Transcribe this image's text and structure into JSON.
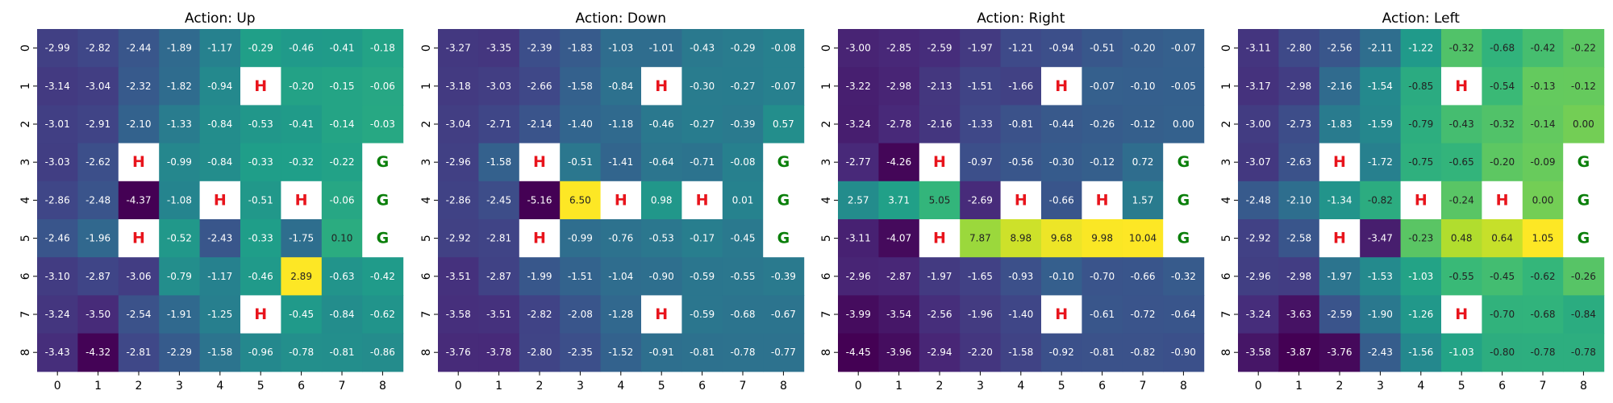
{
  "chart_data": [
    {
      "type": "heatmap",
      "title": "Action: Up",
      "x": [
        "0",
        "1",
        "2",
        "3",
        "4",
        "5",
        "6",
        "7",
        "8"
      ],
      "y": [
        "0",
        "1",
        "2",
        "3",
        "4",
        "5",
        "6",
        "7",
        "8"
      ],
      "values": [
        [
          -2.99,
          -2.82,
          -2.44,
          -1.89,
          -1.17,
          -0.29,
          -0.46,
          -0.41,
          -0.18
        ],
        [
          -3.14,
          -3.04,
          -2.32,
          -1.82,
          -0.94,
          "H",
          -0.2,
          -0.15,
          -0.06
        ],
        [
          -3.01,
          -2.91,
          -2.1,
          -1.33,
          -0.84,
          -0.53,
          -0.41,
          -0.14,
          -0.03
        ],
        [
          -3.03,
          -2.62,
          "H",
          -0.99,
          -0.84,
          -0.33,
          -0.32,
          -0.22,
          "G"
        ],
        [
          -2.86,
          -2.48,
          -4.37,
          -1.08,
          "H",
          -0.51,
          "H",
          -0.06,
          "G"
        ],
        [
          -2.46,
          -1.96,
          "H",
          -0.52,
          -2.43,
          -0.33,
          -1.75,
          0.1,
          "G"
        ],
        [
          -3.1,
          -2.87,
          -3.06,
          -0.79,
          -1.17,
          -0.46,
          2.89,
          -0.63,
          -0.42
        ],
        [
          -3.24,
          -3.5,
          -2.54,
          -1.91,
          -1.25,
          "H",
          -0.45,
          -0.84,
          -0.62
        ],
        [
          -3.43,
          -4.32,
          -2.81,
          -2.29,
          -1.58,
          -0.96,
          -0.78,
          -0.81,
          -0.86
        ]
      ]
    },
    {
      "type": "heatmap",
      "title": "Action: Down",
      "x": [
        "0",
        "1",
        "2",
        "3",
        "4",
        "5",
        "6",
        "7",
        "8"
      ],
      "y": [
        "0",
        "1",
        "2",
        "3",
        "4",
        "5",
        "6",
        "7",
        "8"
      ],
      "values": [
        [
          -3.27,
          -3.35,
          -2.39,
          -1.83,
          -1.03,
          -1.01,
          -0.43,
          -0.29,
          -0.08
        ],
        [
          -3.18,
          -3.03,
          -2.66,
          -1.58,
          -0.84,
          "H",
          -0.3,
          -0.27,
          -0.07
        ],
        [
          -3.04,
          -2.71,
          -2.14,
          -1.4,
          -1.18,
          -0.46,
          -0.27,
          -0.39,
          0.57
        ],
        [
          -2.96,
          -1.58,
          "H",
          -0.51,
          -1.41,
          -0.64,
          -0.71,
          -0.08,
          "G"
        ],
        [
          -2.86,
          -2.45,
          -5.16,
          6.5,
          "H",
          0.98,
          "H",
          0.01,
          "G"
        ],
        [
          -2.92,
          -2.81,
          "H",
          -0.99,
          -0.76,
          -0.53,
          -0.17,
          -0.45,
          "G"
        ],
        [
          -3.51,
          -2.87,
          -1.99,
          -1.51,
          -1.04,
          -0.9,
          -0.59,
          -0.55,
          -0.39
        ],
        [
          -3.58,
          -3.51,
          -2.82,
          -2.08,
          -1.28,
          "H",
          -0.59,
          -0.68,
          -0.67
        ],
        [
          -3.76,
          -3.78,
          -2.8,
          -2.35,
          -1.52,
          -0.91,
          -0.81,
          -0.78,
          -0.77
        ]
      ]
    },
    {
      "type": "heatmap",
      "title": "Action: Right",
      "x": [
        "0",
        "1",
        "2",
        "3",
        "4",
        "5",
        "6",
        "7",
        "8"
      ],
      "y": [
        "0",
        "1",
        "2",
        "3",
        "4",
        "5",
        "6",
        "7",
        "8"
      ],
      "values": [
        [
          -3.0,
          -2.85,
          -2.59,
          -1.97,
          -1.21,
          -0.94,
          -0.51,
          -0.2,
          -0.07
        ],
        [
          -3.22,
          -2.98,
          -2.13,
          -1.51,
          -1.66,
          "H",
          -0.07,
          -0.1,
          -0.05
        ],
        [
          -3.24,
          -2.78,
          -2.16,
          -1.33,
          -0.81,
          -0.44,
          -0.26,
          -0.12,
          -0.0
        ],
        [
          -2.77,
          -4.26,
          "H",
          -0.97,
          -0.56,
          -0.3,
          -0.12,
          0.72,
          "G"
        ],
        [
          2.57,
          3.71,
          5.05,
          -2.69,
          "H",
          -0.66,
          "H",
          1.57,
          "G"
        ],
        [
          -3.11,
          -4.07,
          "H",
          7.87,
          8.98,
          9.68,
          9.98,
          10.04,
          "G"
        ],
        [
          -2.96,
          -2.87,
          -1.97,
          -1.65,
          -0.93,
          -0.1,
          -0.7,
          -0.66,
          -0.32
        ],
        [
          -3.99,
          -3.54,
          -2.56,
          -1.96,
          -1.4,
          "H",
          -0.61,
          -0.72,
          -0.64
        ],
        [
          -4.45,
          -3.96,
          -2.94,
          -2.2,
          -1.58,
          -0.92,
          -0.81,
          -0.82,
          -0.9
        ]
      ]
    },
    {
      "type": "heatmap",
      "title": "Action: Left",
      "x": [
        "0",
        "1",
        "2",
        "3",
        "4",
        "5",
        "6",
        "7",
        "8"
      ],
      "y": [
        "0",
        "1",
        "2",
        "3",
        "4",
        "5",
        "6",
        "7",
        "8"
      ],
      "values": [
        [
          -3.11,
          -2.8,
          -2.56,
          -2.11,
          -1.22,
          -0.32,
          -0.68,
          -0.42,
          -0.22
        ],
        [
          -3.17,
          -2.98,
          -2.16,
          -1.54,
          -0.85,
          "H",
          -0.54,
          -0.13,
          -0.12
        ],
        [
          -3.0,
          -2.73,
          -1.83,
          -1.59,
          -0.79,
          -0.43,
          -0.32,
          -0.14,
          0.0
        ],
        [
          -3.07,
          -2.63,
          "H",
          -1.72,
          -0.75,
          -0.65,
          -0.2,
          -0.09,
          "G"
        ],
        [
          -2.48,
          -2.1,
          -1.34,
          -0.82,
          "H",
          -0.24,
          "H",
          0.0,
          "G"
        ],
        [
          -2.92,
          -2.58,
          "H",
          -3.47,
          -0.23,
          0.48,
          0.64,
          1.05,
          "G"
        ],
        [
          -2.96,
          -2.98,
          -1.97,
          -1.53,
          -1.03,
          -0.55,
          -0.45,
          -0.62,
          -0.26
        ],
        [
          -3.24,
          -3.63,
          -2.59,
          -1.9,
          -1.26,
          "H",
          -0.7,
          -0.68,
          -0.84
        ],
        [
          -3.58,
          -3.87,
          -3.76,
          -2.43,
          -1.56,
          -1.03,
          -0.8,
          -0.78,
          -0.78
        ]
      ]
    }
  ],
  "colors": {
    "hole_text": "#e8141c",
    "goal_text": "#0a7f0a",
    "special_bg": "#ffffff",
    "colormap": "viridis"
  }
}
